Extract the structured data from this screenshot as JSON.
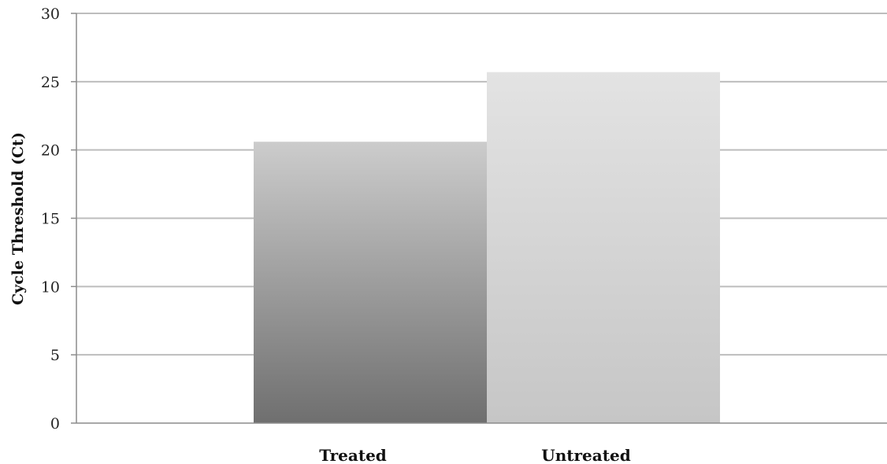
{
  "chart_data": {
    "type": "bar",
    "categories": [
      "Treated",
      "Untreated"
    ],
    "values": [
      20.6,
      25.7
    ],
    "title": "",
    "xlabel": "",
    "ylabel": "Cycle Threshold (Ct)",
    "ylim": [
      0,
      30
    ],
    "yticks": [
      0,
      5,
      10,
      15,
      20,
      25,
      30
    ],
    "grid": true,
    "legend": "none",
    "colors": {
      "treated_bar_top": "#cccccc",
      "treated_bar_bottom": "#6f6f6f",
      "untreated_bar_top": "#e3e3e3",
      "untreated_bar_bottom": "#c6c6c6",
      "gridline": "#bdbdbd",
      "axis": "#8c8c8c"
    }
  }
}
